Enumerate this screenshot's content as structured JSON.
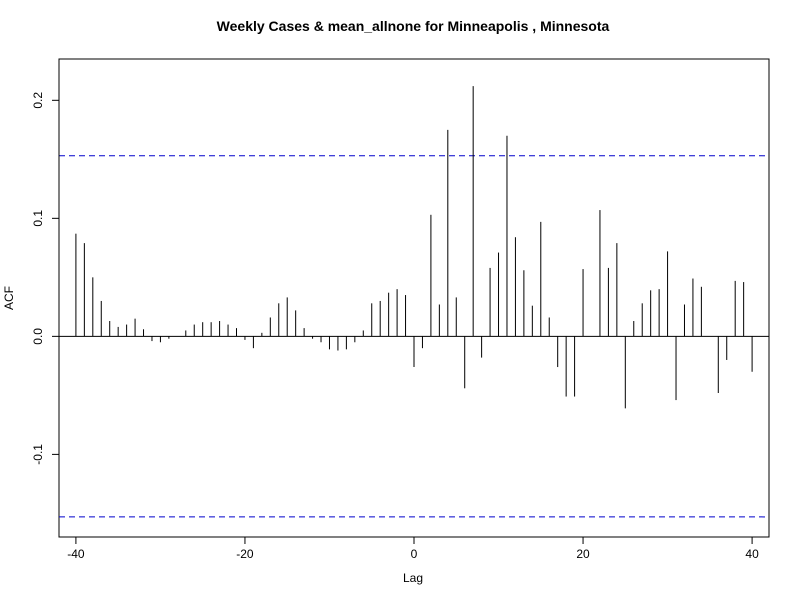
{
  "chart_data": {
    "type": "bar",
    "title": "Weekly Cases & mean_allnone for Minneapolis , Minnesota",
    "xlabel": "Lag",
    "ylabel": "ACF",
    "xlim": [
      -42,
      42
    ],
    "ylim": [
      -0.17,
      0.235
    ],
    "x_ticks": [
      -40,
      -20,
      0,
      20,
      40
    ],
    "x_tick_labels": [
      "-40",
      "-20",
      "0",
      "20",
      "40"
    ],
    "y_ticks": [
      -0.1,
      0.0,
      0.1,
      0.2
    ],
    "y_tick_labels": [
      "-0.1",
      "0.0",
      "0.1",
      "0.2"
    ],
    "confidence_band": 0.153,
    "colors": {
      "spike": "#000000",
      "band": "#0000cc",
      "axis": "#000000"
    },
    "lags": [
      -40,
      -39,
      -38,
      -37,
      -36,
      -35,
      -34,
      -33,
      -32,
      -31,
      -30,
      -29,
      -28,
      -27,
      -26,
      -25,
      -24,
      -23,
      -22,
      -21,
      -20,
      -19,
      -18,
      -17,
      -16,
      -15,
      -14,
      -13,
      -12,
      -11,
      -10,
      -9,
      -8,
      -7,
      -6,
      -5,
      -4,
      -3,
      -2,
      -1,
      0,
      1,
      2,
      3,
      4,
      5,
      6,
      7,
      8,
      9,
      10,
      11,
      12,
      13,
      14,
      15,
      16,
      17,
      18,
      19,
      20,
      21,
      22,
      23,
      24,
      25,
      26,
      27,
      28,
      29,
      30,
      31,
      32,
      33,
      34,
      35,
      36,
      37,
      38,
      39,
      40
    ],
    "values": [
      0.087,
      0.079,
      0.05,
      0.03,
      0.013,
      0.008,
      0.01,
      0.015,
      0.006,
      -0.004,
      -0.005,
      -0.002,
      0.0,
      0.005,
      0.01,
      0.012,
      0.012,
      0.013,
      0.01,
      0.007,
      -0.003,
      -0.01,
      0.003,
      0.016,
      0.028,
      0.033,
      0.022,
      0.007,
      -0.002,
      -0.005,
      -0.011,
      -0.012,
      -0.011,
      -0.005,
      0.005,
      0.028,
      0.03,
      0.037,
      0.04,
      0.035,
      -0.026,
      -0.01,
      0.103,
      0.027,
      0.175,
      0.033,
      -0.044,
      0.212,
      -0.018,
      0.058,
      0.071,
      0.17,
      0.084,
      0.056,
      0.026,
      0.097,
      0.016,
      -0.026,
      -0.051,
      -0.051,
      0.057,
      0.0,
      0.107,
      0.058,
      0.079,
      -0.061,
      0.013,
      0.028,
      0.039,
      0.04,
      0.072,
      -0.054,
      0.027,
      0.049,
      0.042,
      0.0,
      -0.048,
      -0.02,
      0.047,
      0.046,
      -0.03
    ]
  }
}
